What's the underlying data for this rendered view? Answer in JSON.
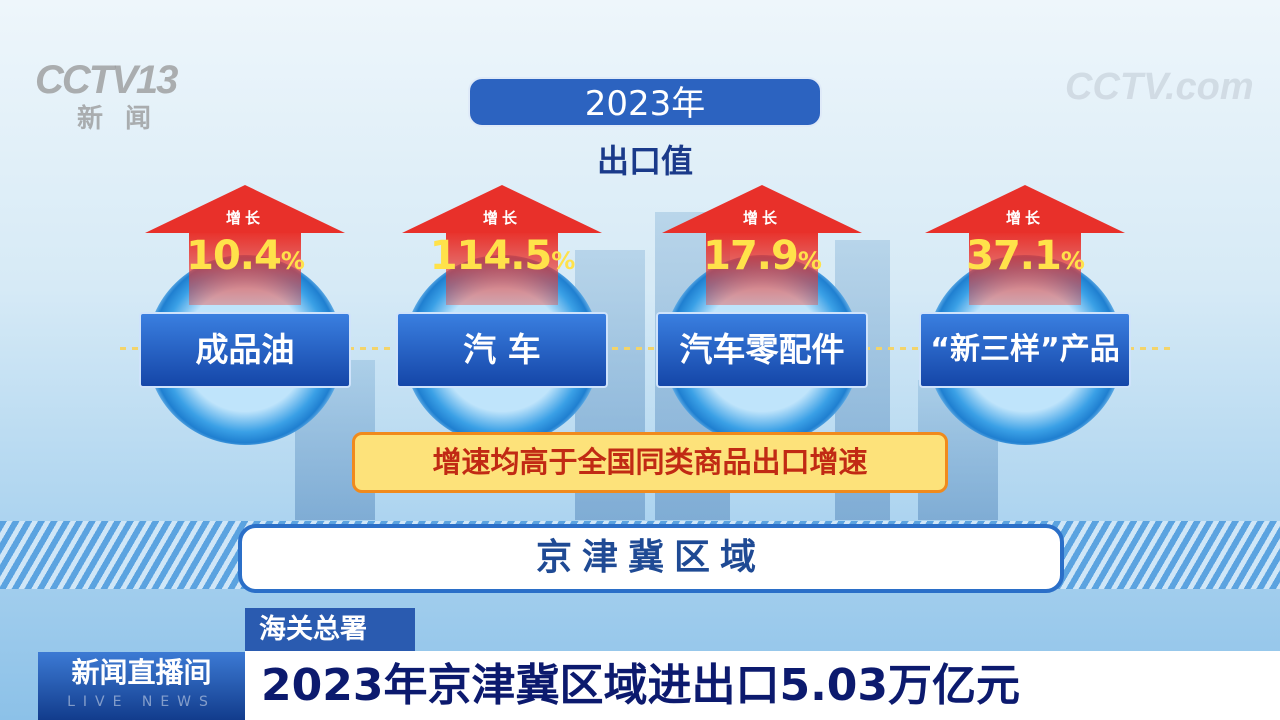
{
  "channel_logo": {
    "text": "CCTV13",
    "sub": "新闻"
  },
  "watermark": {
    "text": "CCTV.com"
  },
  "header": {
    "year": "2023年",
    "subtitle": "出口值"
  },
  "items": [
    {
      "growth_label": "增长",
      "growth_value": "10.4",
      "unit": "%",
      "name": "成品油"
    },
    {
      "growth_label": "增长",
      "growth_value": "114.5",
      "unit": "%",
      "name": "汽 车"
    },
    {
      "growth_label": "增长",
      "growth_value": "17.9",
      "unit": "%",
      "name": "汽车零配件"
    },
    {
      "growth_label": "增长",
      "growth_value": "37.1",
      "unit": "%",
      "name": "“新三样”产品"
    }
  ],
  "note": "增速均高于全国同类商品出口增速",
  "region": "京津冀区域",
  "lower_third": {
    "source": "海关总署",
    "program": "新闻直播间",
    "program_en": "LIVE NEWS",
    "headline": "2023年京津冀区域进出口5.03万亿元"
  },
  "colors": {
    "accent": "#2c63c0",
    "arrow": "#e8302a",
    "value": "#ffe24a",
    "banner": "#fde27a"
  }
}
